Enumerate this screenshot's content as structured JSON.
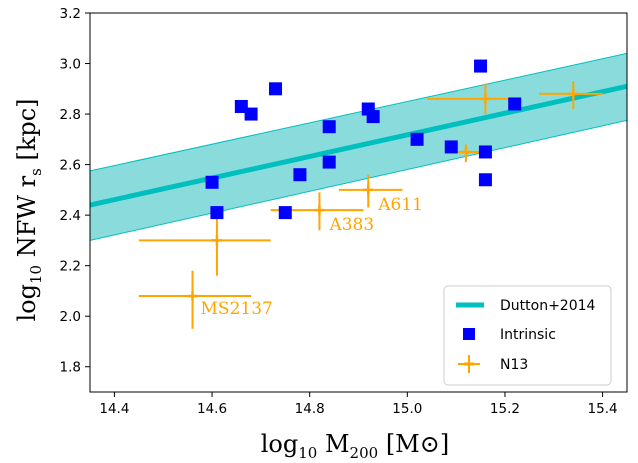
{
  "chart_data": {
    "type": "scatter",
    "xlabel": {
      "base": "log",
      "sub": "10",
      "main": " M",
      "sub2": "200",
      "tail": " [M",
      "sun": "⊙",
      "close": "]"
    },
    "ylabel": {
      "base": "log",
      "sub": "10",
      "main": " NFW r",
      "sub2": "s",
      "tail": " [kpc]"
    },
    "xlim": [
      14.35,
      15.45
    ],
    "ylim": [
      1.7,
      3.2
    ],
    "x_ticks": [
      "14.4",
      "14.6",
      "14.8",
      "15.0",
      "15.2",
      "15.4"
    ],
    "y_ticks": [
      "1.8",
      "2.0",
      "2.2",
      "2.4",
      "2.6",
      "2.8",
      "3.0",
      "3.2"
    ],
    "grid": false,
    "legend_position": "lower-right",
    "colors": {
      "dutton": "#00bfbf",
      "dutton_band": "#8adcdc",
      "intrinsic": "#0000ff",
      "n13": "#ffa500"
    },
    "series": [
      {
        "name": "Dutton+2014",
        "type": "line-band",
        "x": [
          14.35,
          15.45
        ],
        "y": [
          2.44,
          2.91
        ],
        "y_upper": [
          2.575,
          3.04
        ],
        "y_lower": [
          2.3,
          2.775
        ]
      },
      {
        "name": "Intrinsic",
        "type": "scatter",
        "points": [
          {
            "x": 14.6,
            "y": 2.53
          },
          {
            "x": 14.61,
            "y": 2.41
          },
          {
            "x": 14.66,
            "y": 2.83
          },
          {
            "x": 14.68,
            "y": 2.8
          },
          {
            "x": 14.73,
            "y": 2.9
          },
          {
            "x": 14.75,
            "y": 2.41
          },
          {
            "x": 14.78,
            "y": 2.56
          },
          {
            "x": 14.84,
            "y": 2.75
          },
          {
            "x": 14.84,
            "y": 2.61
          },
          {
            "x": 14.92,
            "y": 2.82
          },
          {
            "x": 14.93,
            "y": 2.79
          },
          {
            "x": 15.02,
            "y": 2.7
          },
          {
            "x": 15.09,
            "y": 2.67
          },
          {
            "x": 15.15,
            "y": 2.99
          },
          {
            "x": 15.16,
            "y": 2.65
          },
          {
            "x": 15.16,
            "y": 2.54
          },
          {
            "x": 15.22,
            "y": 2.84
          }
        ]
      },
      {
        "name": "N13",
        "type": "errorbar",
        "points": [
          {
            "x": 14.56,
            "y": 2.08,
            "xerr": [
              0.11,
              0.12
            ],
            "yerr": [
              0.13,
              0.1
            ],
            "label": "MS2137"
          },
          {
            "x": 14.61,
            "y": 2.3,
            "xerr": [
              0.16,
              0.11
            ],
            "yerr": [
              0.14,
              0.12
            ],
            "label": ""
          },
          {
            "x": 14.82,
            "y": 2.42,
            "xerr": [
              0.1,
              0.09
            ],
            "yerr": [
              0.08,
              0.07
            ],
            "label": "A383"
          },
          {
            "x": 14.92,
            "y": 2.5,
            "xerr": [
              0.06,
              0.07
            ],
            "yerr": [
              0.07,
              0.06
            ],
            "label": "A611"
          },
          {
            "x": 15.12,
            "y": 2.65,
            "xerr": [
              0.03,
              0.03
            ],
            "yerr": [
              0.04,
              0.03
            ],
            "label": ""
          },
          {
            "x": 15.16,
            "y": 2.86,
            "xerr": [
              0.12,
              0.06
            ],
            "yerr": [
              0.06,
              0.06
            ],
            "label": ""
          },
          {
            "x": 15.34,
            "y": 2.88,
            "xerr": [
              0.07,
              0.06
            ],
            "yerr": [
              0.06,
              0.05
            ],
            "label": ""
          }
        ]
      }
    ]
  }
}
